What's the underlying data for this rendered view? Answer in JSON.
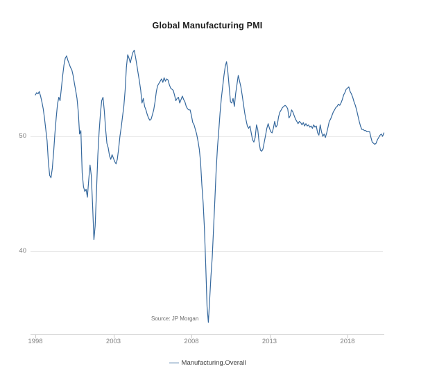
{
  "chart": {
    "title": "Global Manufacturing PMI",
    "source_note": "Source: JP Morgan",
    "legend_label": "Manufacturing.Overall"
  },
  "colors": {
    "line": "#35689d",
    "gridline": "#e9e9e9",
    "axis": "#d9d9d9",
    "tick": "#c9c9c9",
    "axis_text": "#7f7f7f",
    "title_text": "#1a1a1a",
    "source_text": "#696969",
    "legend_text": "#3c3c3c"
  },
  "chart_data": {
    "type": "line",
    "title": "Global Manufacturing PMI",
    "xlabel": "",
    "ylabel": "",
    "xticks": [
      1998,
      2003,
      2008,
      2013,
      2018
    ],
    "yticks": [
      50,
      40
    ],
    "xlim": [
      1997.7,
      2020.5
    ],
    "ylim": [
      33,
      58
    ],
    "grid": "horizontal-only",
    "legend_position": "bottom-center",
    "line_color": "#35689d",
    "annotations": [
      "Source: JP Morgan"
    ],
    "series": [
      {
        "name": "Manufacturing.Overall",
        "frequency": "monthly",
        "start_year": 1998,
        "values": [
          53.6,
          53.8,
          53.7,
          53.9,
          53.5,
          53.0,
          52.4,
          51.6,
          50.6,
          49.6,
          47.8,
          46.6,
          46.4,
          47.2,
          48.6,
          50.2,
          51.6,
          52.8,
          53.4,
          53.1,
          54.2,
          55.3,
          56.2,
          56.8,
          57.0,
          56.6,
          56.3,
          56.0,
          55.8,
          55.3,
          54.6,
          54.0,
          53.3,
          52.1,
          50.2,
          50.5,
          46.8,
          45.6,
          45.2,
          45.4,
          44.7,
          46.2,
          47.5,
          46.6,
          44.0,
          41.0,
          42.2,
          45.2,
          48.3,
          50.4,
          52.0,
          53.1,
          53.4,
          52.2,
          50.6,
          49.4,
          49.0,
          48.3,
          48.0,
          48.4,
          48.1,
          47.8,
          47.6,
          48.0,
          48.9,
          50.0,
          50.8,
          51.7,
          52.6,
          54.0,
          56.0,
          57.1,
          56.8,
          56.4,
          56.9,
          57.3,
          57.5,
          56.9,
          56.2,
          55.5,
          54.8,
          54.0,
          52.9,
          53.3,
          52.6,
          52.3,
          51.9,
          51.6,
          51.4,
          51.5,
          51.9,
          52.3,
          53.0,
          53.9,
          54.4,
          54.6,
          54.8,
          55.0,
          54.7,
          55.1,
          54.8,
          55.0,
          54.9,
          54.5,
          54.2,
          54.1,
          54.0,
          53.6,
          53.1,
          53.3,
          53.4,
          52.9,
          53.2,
          53.5,
          53.2,
          53.0,
          52.6,
          52.4,
          52.3,
          52.3,
          51.8,
          51.2,
          51.0,
          50.6,
          50.2,
          49.6,
          48.9,
          47.8,
          45.8,
          44.2,
          42.0,
          38.8,
          35.2,
          33.8,
          35.8,
          37.8,
          39.5,
          42.0,
          44.5,
          47.0,
          49.0,
          50.5,
          52.0,
          53.3,
          54.3,
          55.3,
          56.1,
          56.5,
          55.6,
          54.3,
          53.0,
          52.9,
          53.3,
          52.6,
          53.7,
          54.5,
          55.3,
          54.8,
          54.3,
          53.6,
          52.8,
          52.0,
          51.4,
          50.9,
          50.7,
          50.9,
          50.3,
          49.7,
          49.5,
          49.9,
          51.0,
          50.6,
          49.5,
          48.8,
          48.7,
          48.9,
          49.5,
          50.1,
          50.7,
          51.1,
          50.7,
          50.4,
          50.3,
          50.7,
          51.3,
          50.8,
          51.0,
          51.7,
          52.1,
          52.3,
          52.5,
          52.6,
          52.7,
          52.6,
          52.4,
          51.6,
          51.8,
          52.3,
          52.1,
          51.8,
          51.5,
          51.3,
          51.1,
          51.3,
          51.2,
          51.0,
          51.2,
          50.9,
          51.1,
          50.9,
          51.0,
          50.8,
          50.9,
          50.7,
          51.0,
          50.8,
          50.9,
          50.3,
          50.1,
          51.0,
          50.4,
          50.0,
          50.2,
          49.9,
          50.3,
          50.8,
          51.3,
          51.5,
          51.8,
          52.1,
          52.3,
          52.5,
          52.6,
          52.8,
          52.7,
          52.9,
          53.2,
          53.6,
          53.8,
          54.1,
          54.2,
          54.3,
          53.9,
          53.7,
          53.4,
          53.0,
          52.7,
          52.3,
          51.8,
          51.3,
          50.9,
          50.6,
          50.6,
          50.5,
          50.5,
          50.4,
          50.4,
          50.4,
          49.9,
          49.5,
          49.4,
          49.3,
          49.4,
          49.7,
          49.9,
          50.1,
          50.2,
          50.0,
          50.3
        ]
      }
    ]
  }
}
